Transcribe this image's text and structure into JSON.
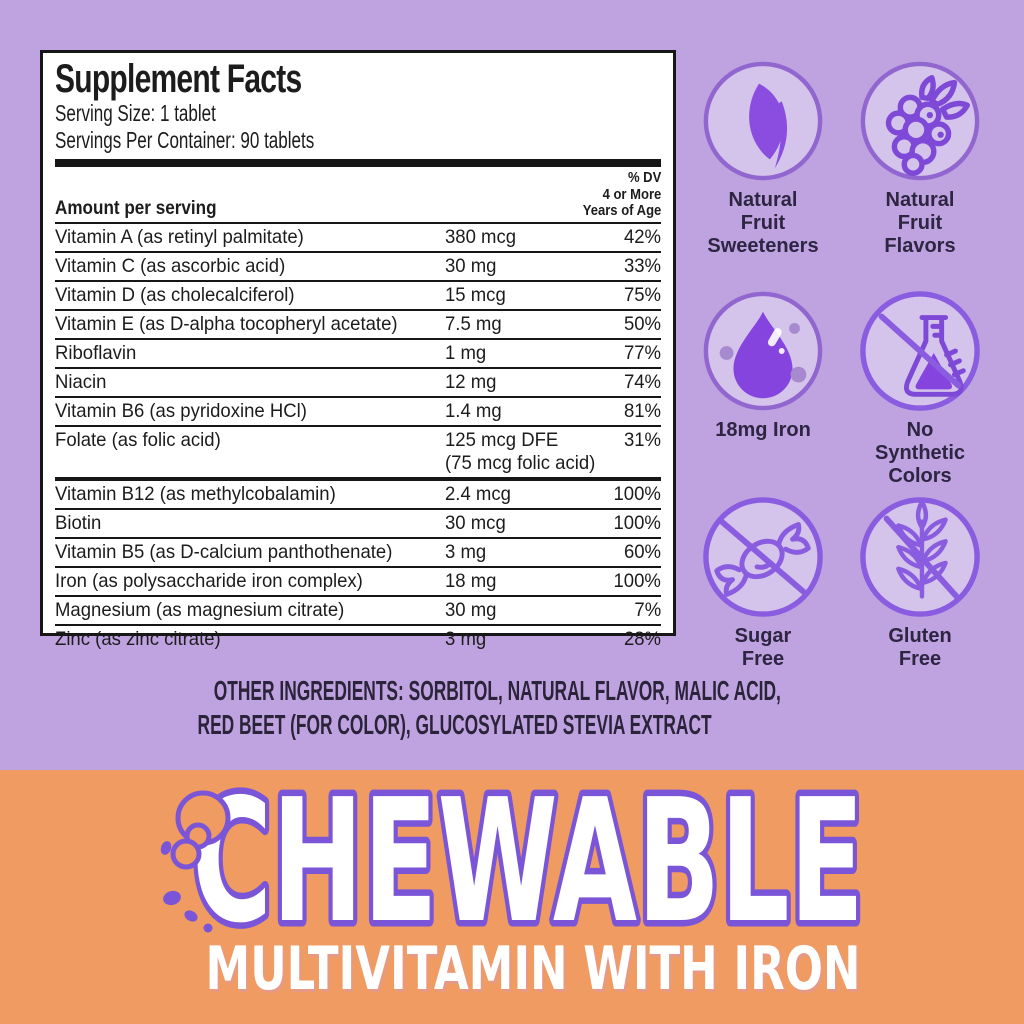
{
  "colors": {
    "background_lavender": "#bfa3e0",
    "banner_orange": "#ef9b61",
    "icon_purple": "#8a4de0",
    "icon_outline_purple": "#7d49d6",
    "circle_fill": "#d4c3ea",
    "circle_ring": "#9166cf",
    "no_ring": "#8a5ce0",
    "headline_outline": "#7a55d8",
    "panel_black": "#161616",
    "label_text": "#2d2542"
  },
  "supplement_facts": {
    "title": "Supplement Facts",
    "serving_size": "Serving Size: 1 tablet",
    "servings_per_container": "Servings Per Container: 90 tablets",
    "column_header_left": "Amount per serving",
    "column_header_right": "% DV\n4 or More\nYears of Age",
    "rows": [
      {
        "name": "Vitamin A (as retinyl palmitate)",
        "amount": "380 mcg",
        "dv": "42%"
      },
      {
        "name": "Vitamin C (as ascorbic acid)",
        "amount": "30 mg",
        "dv": "33%"
      },
      {
        "name": "Vitamin D (as cholecalciferol)",
        "amount": "15 mcg",
        "dv": "75%"
      },
      {
        "name": "Vitamin E (as D-alpha tocopheryl acetate)",
        "amount": "7.5 mg",
        "dv": "50%"
      },
      {
        "name": "Riboflavin",
        "amount": "1 mg",
        "dv": "77%"
      },
      {
        "name": "Niacin",
        "amount": "12 mg",
        "dv": "74%"
      },
      {
        "name": "Vitamin B6 (as pyridoxine HCl)",
        "amount": "1.4 mg",
        "dv": "81%"
      },
      {
        "name": "Folate (as folic acid)",
        "amount": "125 mcg DFE",
        "amount2": "(75 mcg folic acid)",
        "dv": "31%"
      },
      {
        "name": "Vitamin B12 (as methylcobalamin)",
        "amount": "2.4 mcg",
        "dv": "100%",
        "thick_top": true
      },
      {
        "name": "Biotin",
        "amount": "30 mcg",
        "dv": "100%"
      },
      {
        "name": "Vitamin B5 (as D-calcium panthothenate)",
        "amount": "3 mg",
        "dv": "60%"
      },
      {
        "name": "Iron (as polysaccharide iron complex)",
        "amount": "18 mg",
        "dv": "100%"
      },
      {
        "name": "Magnesium (as magnesium citrate)",
        "amount": "30 mg",
        "dv": "7%"
      },
      {
        "name": "Zinc (as zinc citrate)",
        "amount": "3 mg",
        "dv": "28%"
      }
    ]
  },
  "other_ingredients": {
    "line1": "OTHER INGREDIENTS: SORBITOL, NATURAL FLAVOR, MALIC ACID,",
    "line2": "RED BEET (FOR COLOR), GLUCOSYLATED STEVIA EXTRACT"
  },
  "badges": [
    {
      "icon": "leaf-icon",
      "label": "Natural\nFruit\nSweeteners"
    },
    {
      "icon": "berry-icon",
      "label": "Natural\nFruit\nFlavors"
    },
    {
      "icon": "iron-drop-icon",
      "label": "18mg Iron"
    },
    {
      "icon": "no-flask-icon",
      "label": "No\nSynthetic\nColors"
    },
    {
      "icon": "no-candy-icon",
      "label": "Sugar\nFree"
    },
    {
      "icon": "no-wheat-icon",
      "label": "Gluten\nFree"
    }
  ],
  "banner": {
    "headline": "CHEWABLE",
    "subheadline": "MULTIVITAMIN WITH IRON"
  }
}
